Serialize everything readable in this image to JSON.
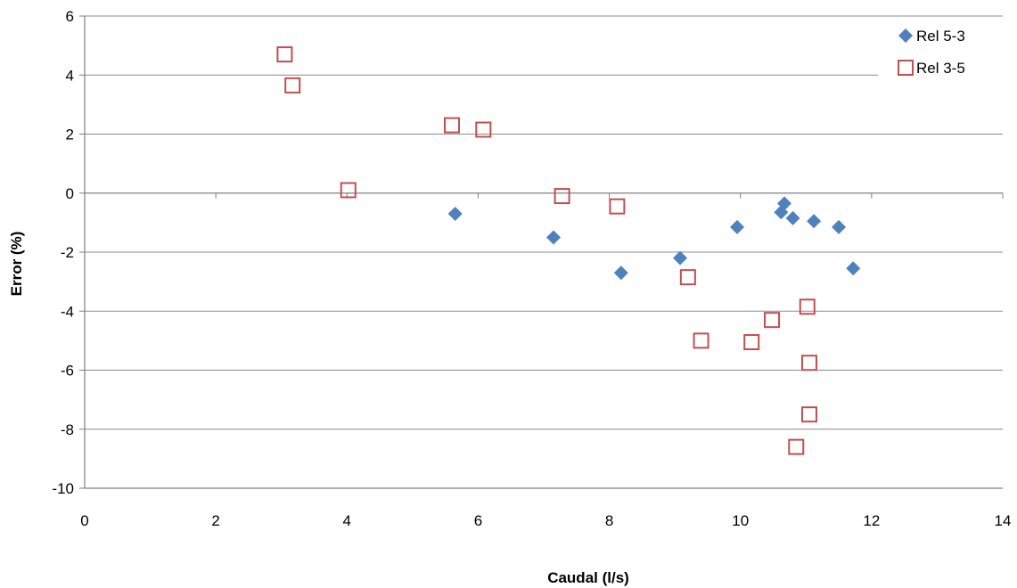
{
  "chart_data": {
    "type": "scatter",
    "title": "",
    "xlabel": "Caudal (l/s)",
    "ylabel": "Error (%)",
    "xlim": [
      0,
      14
    ],
    "ylim": [
      -10,
      6
    ],
    "x_ticks": [
      0,
      2,
      4,
      6,
      8,
      10,
      12,
      14
    ],
    "y_ticks": [
      -10,
      -8,
      -6,
      -4,
      -2,
      0,
      2,
      4,
      6
    ],
    "grid": "horizontal",
    "legend_position": "top-right",
    "series": [
      {
        "name": "Rel 5-3",
        "marker": "diamond",
        "color": "#4F81BD",
        "points": [
          [
            5.65,
            -0.7
          ],
          [
            7.15,
            -1.5
          ],
          [
            8.18,
            -2.7
          ],
          [
            9.08,
            -2.2
          ],
          [
            9.95,
            -1.15
          ],
          [
            10.62,
            -0.65
          ],
          [
            10.67,
            -0.35
          ],
          [
            10.8,
            -0.85
          ],
          [
            11.12,
            -0.95
          ],
          [
            11.5,
            -1.15
          ],
          [
            11.72,
            -2.55
          ]
        ]
      },
      {
        "name": "Rel 3-5",
        "marker": "square-open",
        "color": "#C0504D",
        "points": [
          [
            3.05,
            4.7
          ],
          [
            3.17,
            3.65
          ],
          [
            4.02,
            0.1
          ],
          [
            5.6,
            2.3
          ],
          [
            6.08,
            2.15
          ],
          [
            7.28,
            -0.1
          ],
          [
            8.12,
            -0.45
          ],
          [
            9.2,
            -2.85
          ],
          [
            9.4,
            -5.0
          ],
          [
            10.17,
            -5.05
          ],
          [
            10.48,
            -4.3
          ],
          [
            11.02,
            -3.85
          ],
          [
            11.05,
            -5.75
          ],
          [
            11.05,
            -7.5
          ],
          [
            10.85,
            -8.6
          ]
        ]
      }
    ]
  }
}
